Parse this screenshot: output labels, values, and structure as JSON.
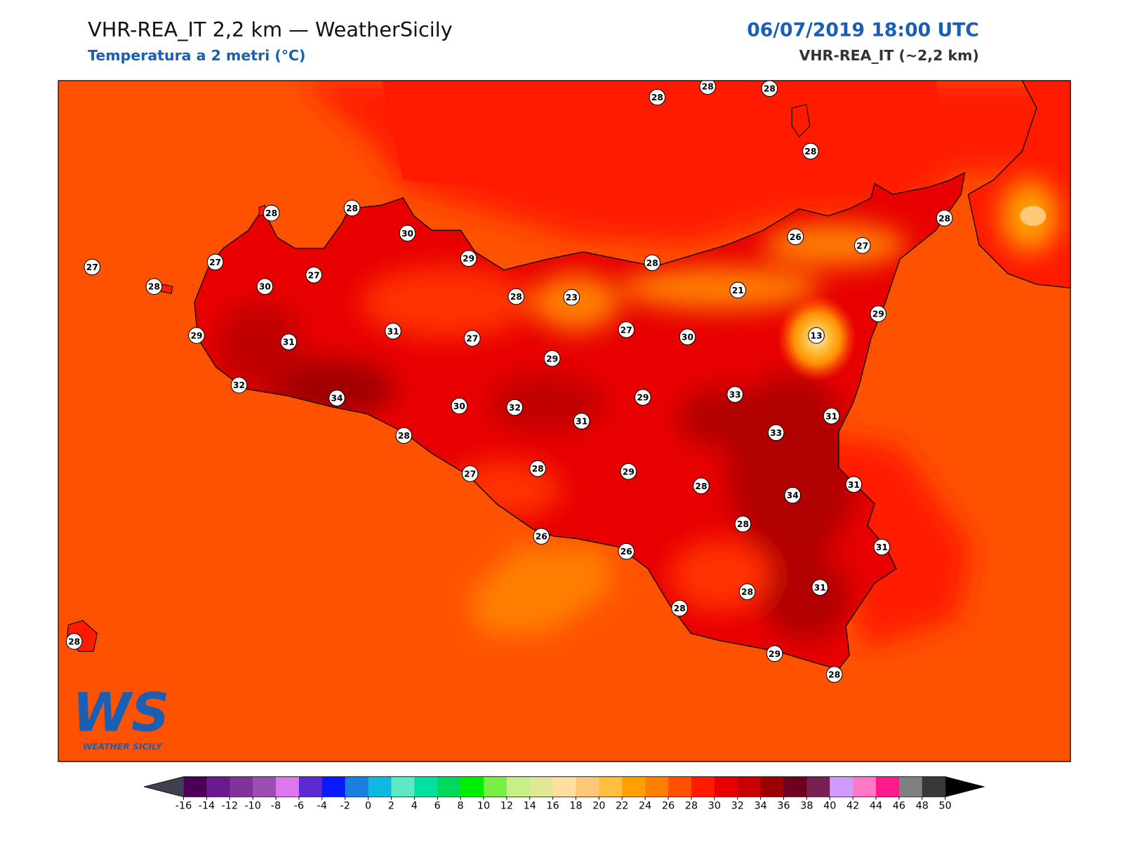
{
  "header": {
    "title": "VHR-REA_IT 2,2 km — WeatherSicily",
    "subtitle": "Temperatura a 2 metri (°C)",
    "datetime": "06/07/2019 18:00 UTC",
    "model": "VHR-REA_IT (~2,2 km)"
  },
  "stations": [
    28,
    28,
    28,
    28,
    28,
    28,
    30,
    27,
    27,
    28,
    30,
    27,
    29,
    28,
    26,
    27,
    28,
    28,
    23,
    21,
    29,
    29,
    31,
    31,
    27,
    27,
    30,
    13,
    29,
    32,
    34,
    30,
    32,
    31,
    29,
    33,
    31,
    33,
    28,
    27,
    28,
    29,
    28,
    31,
    34,
    28,
    26,
    26,
    31,
    31,
    28,
    28,
    29,
    28,
    28
  ],
  "colorbar": {
    "ticks": [
      -16,
      -14,
      -12,
      -10,
      -8,
      -6,
      -4,
      -2,
      0,
      2,
      4,
      6,
      8,
      10,
      12,
      14,
      16,
      18,
      20,
      22,
      24,
      26,
      28,
      30,
      32,
      34,
      36,
      38,
      40,
      42,
      44,
      46,
      48,
      50
    ],
    "colors": [
      "#4b0055",
      "#6a1a8f",
      "#823399",
      "#9b4fb0",
      "#dd77ee",
      "#5b2ad0",
      "#0a1aff",
      "#1a7fe0",
      "#0fb8e0",
      "#5fe8c8",
      "#00e0a0",
      "#00d860",
      "#00ee00",
      "#7aee44",
      "#c8ee88",
      "#e0e898",
      "#ffe0a0",
      "#ffc878",
      "#ffc040",
      "#ffa000",
      "#ff7f00",
      "#ff5000",
      "#ff1a00",
      "#e80000",
      "#c80000",
      "#9a0000",
      "#6e0020",
      "#7a2050",
      "#d09cff",
      "#ff78c8",
      "#ff1a8c",
      "#808080",
      "#383838"
    ],
    "under": "#404050",
    "over": "#000000"
  },
  "logo": {
    "letters": "WS",
    "name": "WEATHER SICILY"
  }
}
